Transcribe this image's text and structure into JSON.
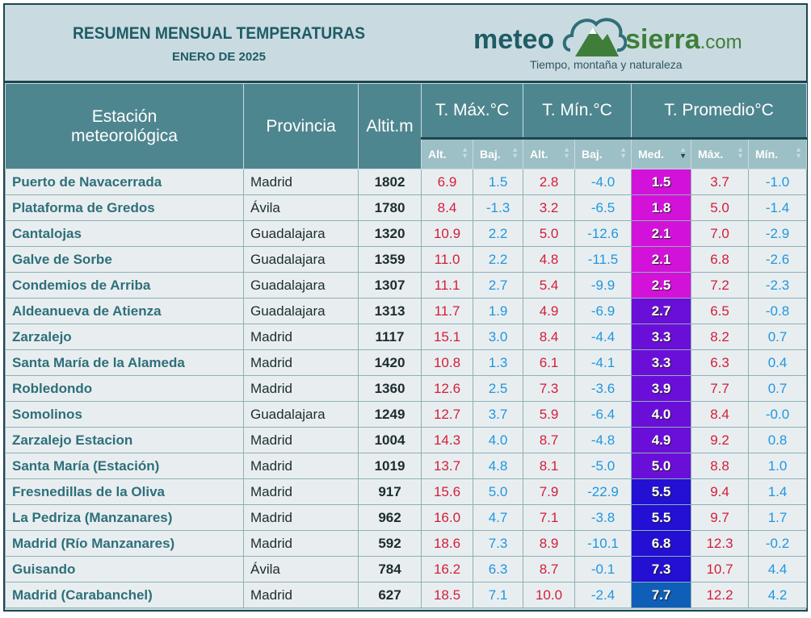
{
  "header": {
    "title": "RESUMEN MENSUAL TEMPERATURAS",
    "subtitle": "ENERO DE 2025"
  },
  "logo": {
    "left": "meteo",
    "right": "sierra",
    "suffix": ".com",
    "tagline": "Tiempo, montaña y naturaleza"
  },
  "columns": {
    "station": [
      "Estación",
      "meteorológica"
    ],
    "province": "Provincia",
    "altitude": "Altit.",
    "altitude_unit": "m",
    "tmax": "T. Máx.",
    "tmin": "T. Mín.",
    "tavg": "T. Promedio",
    "unit": "°C",
    "sub": [
      "Alt.",
      "Baj.",
      "Alt.",
      "Baj.",
      "Med.",
      "Máx.",
      "Mín."
    ],
    "sorted_column": "Med.",
    "sort_direction": "ascending"
  },
  "colors": {
    "med_low": "#d312d9",
    "med_mid": "#6a0fd8",
    "med_high": "#2310d2",
    "med_top": "#0f5fb8"
  },
  "rows": [
    [
      "Puerto de Navacerrada",
      "Madrid",
      "1802",
      "6.9",
      "1.5",
      "2.8",
      "-4.0",
      "1.5",
      "3.7",
      "-1.0"
    ],
    [
      "Plataforma de Gredos",
      "Ávila",
      "1780",
      "8.4",
      "-1.3",
      "3.2",
      "-6.5",
      "1.8",
      "5.0",
      "-1.4"
    ],
    [
      "Cantalojas",
      "Guadalajara",
      "1320",
      "10.9",
      "2.2",
      "5.0",
      "-12.6",
      "2.1",
      "7.0",
      "-2.9"
    ],
    [
      "Galve de Sorbe",
      "Guadalajara",
      "1359",
      "11.0",
      "2.2",
      "4.8",
      "-11.5",
      "2.1",
      "6.8",
      "-2.6"
    ],
    [
      "Condemios de Arriba",
      "Guadalajara",
      "1307",
      "11.1",
      "2.7",
      "5.4",
      "-9.9",
      "2.5",
      "7.2",
      "-2.3"
    ],
    [
      "Aldeanueva de Atienza",
      "Guadalajara",
      "1313",
      "11.7",
      "1.9",
      "4.9",
      "-6.9",
      "2.7",
      "6.5",
      "-0.8"
    ],
    [
      "Zarzalejo",
      "Madrid",
      "1117",
      "15.1",
      "3.0",
      "8.4",
      "-4.4",
      "3.3",
      "8.2",
      "0.7"
    ],
    [
      "Santa María de la Alameda",
      "Madrid",
      "1420",
      "10.8",
      "1.3",
      "6.1",
      "-4.1",
      "3.3",
      "6.3",
      "0.4"
    ],
    [
      "Robledondo",
      "Madrid",
      "1360",
      "12.6",
      "2.5",
      "7.3",
      "-3.6",
      "3.9",
      "7.7",
      "0.7"
    ],
    [
      "Somolinos",
      "Guadalajara",
      "1249",
      "12.7",
      "3.7",
      "5.9",
      "-6.4",
      "4.0",
      "8.4",
      "-0.0"
    ],
    [
      "Zarzalejo Estacion",
      "Madrid",
      "1004",
      "14.3",
      "4.0",
      "8.7",
      "-4.8",
      "4.9",
      "9.2",
      "0.8"
    ],
    [
      "Santa María (Estación)",
      "Madrid",
      "1019",
      "13.7",
      "4.8",
      "8.1",
      "-5.0",
      "5.0",
      "8.8",
      "1.0"
    ],
    [
      "Fresnedillas de la Oliva",
      "Madrid",
      "917",
      "15.6",
      "5.0",
      "7.9",
      "-22.9",
      "5.5",
      "9.4",
      "1.4"
    ],
    [
      "La Pedriza (Manzanares)",
      "Madrid",
      "962",
      "16.0",
      "4.7",
      "7.1",
      "-3.8",
      "5.5",
      "9.7",
      "1.7"
    ],
    [
      "Madrid (Río Manzanares)",
      "Madrid",
      "592",
      "18.6",
      "7.3",
      "8.9",
      "-10.1",
      "6.8",
      "12.3",
      "-0.2"
    ],
    [
      "Guisando",
      "Ávila",
      "784",
      "16.2",
      "6.3",
      "8.7",
      "-0.1",
      "7.3",
      "10.7",
      "4.4"
    ],
    [
      "Madrid (Carabanchel)",
      "Madrid",
      "627",
      "18.5",
      "7.1",
      "10.0",
      "-2.4",
      "7.7",
      "12.2",
      "4.2"
    ]
  ]
}
